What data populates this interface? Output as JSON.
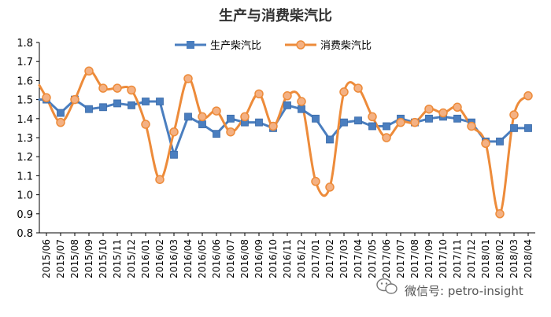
{
  "chart_data": {
    "type": "line",
    "title": "生产与消费柴汽比",
    "xlabel": "",
    "ylabel": "",
    "ylim": [
      0.8,
      1.8
    ],
    "yticks": [
      "0.8",
      "0.9",
      "1.0",
      "1.1",
      "1.2",
      "1.3",
      "1.4",
      "1.5",
      "1.6",
      "1.7",
      "1.8"
    ],
    "grid": false,
    "legend_position": "top-center",
    "categories": [
      "2015/06",
      "2015/07",
      "2015/08",
      "2015/09",
      "2015/10",
      "2015/11",
      "2015/12",
      "2016/01",
      "2016/02",
      "2016/03",
      "2016/04",
      "2016/05",
      "2016/06",
      "2016/07",
      "2016/08",
      "2016/09",
      "2016/10",
      "2016/11",
      "2016/12",
      "2017/01",
      "2017/02",
      "2017/03",
      "2017/04",
      "2017/05",
      "2017/06",
      "2017/07",
      "2017/08",
      "2017/09",
      "2017/10",
      "2017/11",
      "2017/12",
      "2018/01",
      "2018/02",
      "2018/03",
      "2018/04"
    ],
    "series": [
      {
        "name": "生产柴汽比",
        "color": "#4a7ebf",
        "marker": "square",
        "smooth": false,
        "values": [
          1.5,
          1.43,
          1.5,
          1.45,
          1.46,
          1.48,
          1.47,
          1.49,
          1.49,
          1.21,
          1.41,
          1.37,
          1.32,
          1.4,
          1.38,
          1.38,
          1.35,
          1.47,
          1.45,
          1.4,
          1.29,
          1.38,
          1.39,
          1.36,
          1.36,
          1.4,
          1.38,
          1.4,
          1.41,
          1.4,
          1.38,
          1.28,
          1.28,
          1.35,
          1.35
        ]
      },
      {
        "name": "消费柴汽比",
        "color": "#ed8b3a",
        "marker": "circle",
        "smooth": true,
        "values": [
          1.51,
          1.38,
          1.5,
          1.65,
          1.56,
          1.56,
          1.55,
          1.37,
          1.08,
          1.33,
          1.61,
          1.41,
          1.44,
          1.33,
          1.41,
          1.53,
          1.36,
          1.52,
          1.49,
          1.07,
          1.04,
          1.54,
          1.56,
          1.41,
          1.3,
          1.38,
          1.38,
          1.45,
          1.43,
          1.46,
          1.36,
          1.27,
          0.9,
          1.42,
          1.52
        ]
      }
    ]
  },
  "watermark": {
    "icon": "wechat-icon",
    "text": "微信号: petro-insight"
  }
}
